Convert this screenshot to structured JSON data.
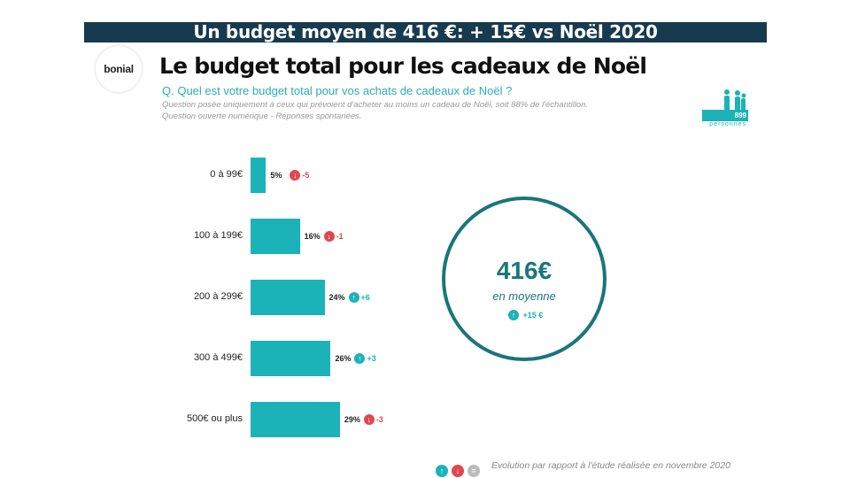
{
  "banner": "Un budget moyen de 416 €: + 15€ vs Noël 2020",
  "logo": "bonial",
  "title": "Le budget total pour les cadeaux de Noël",
  "question": "Q. Quel est votre budget total pour vos achats de cadeaux de Noël ?",
  "notes": [
    "Question posée uniquement à ceux qui prévoient d'acheter au moins un cadeau de Noël, soit 88% de l'échantillon.",
    "Question ouverte numérique - Réponses spontanées."
  ],
  "sample": {
    "count": "899",
    "label": "personnes"
  },
  "colors": {
    "bar": "#1bb3b8",
    "up": "#1bb3b8",
    "down": "#e0474f",
    "neutral": "#bbbbbb",
    "banner": "#173a4e"
  },
  "average": {
    "value": "416€",
    "label": "en moyenne",
    "change": "+15 €",
    "direction": "up"
  },
  "legend": "Evolution par rapport à l'étude réalisée en novembre 2020",
  "chart_data": {
    "type": "bar",
    "orientation": "horizontal",
    "categories": [
      "0 à 99€",
      "100 à 199€",
      "200 à 299€",
      "300 à 499€",
      "500€ ou plus"
    ],
    "values": [
      5,
      16,
      24,
      26,
      29
    ],
    "labels": [
      "5%",
      "16%",
      "24%",
      "26%",
      "29%"
    ],
    "changes": [
      "-5",
      "-1",
      "+6",
      "+3",
      "-3"
    ],
    "directions": [
      "down",
      "down",
      "up",
      "up",
      "down"
    ]
  }
}
